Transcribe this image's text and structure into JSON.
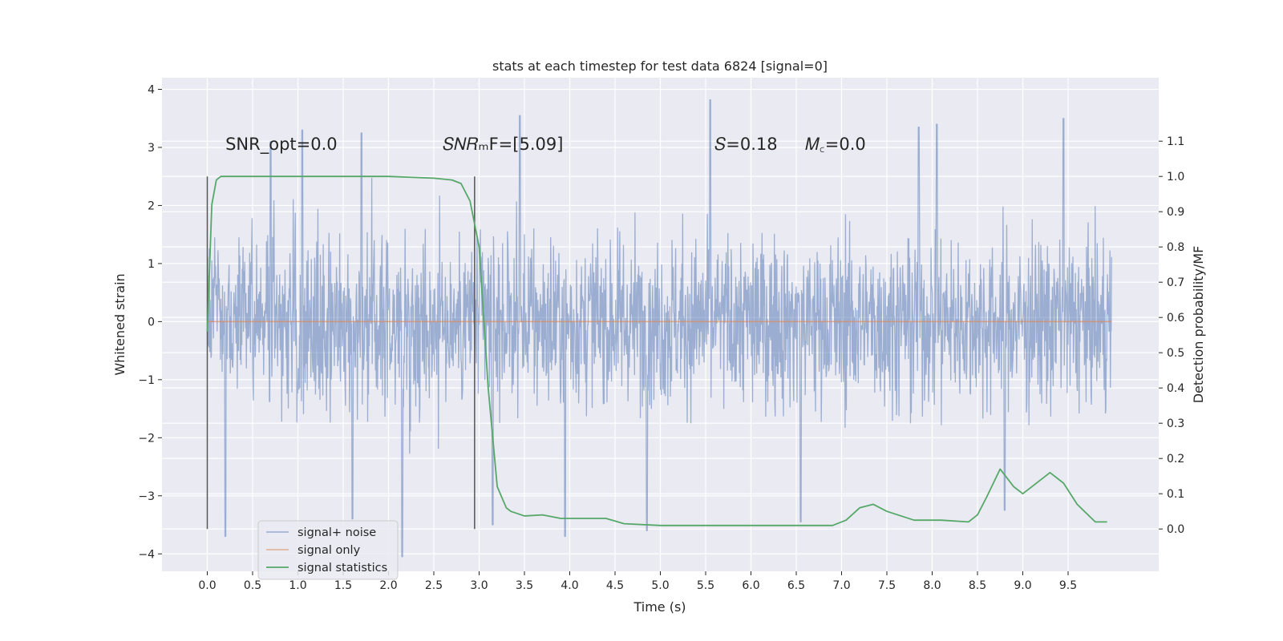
{
  "chart_data": {
    "type": "line",
    "title": "stats at each timestep for test data 6824 [signal=0]",
    "xlabel": "Time (s)",
    "ylabel": "Whitened strain",
    "y2label": "Detection probability/MF",
    "xlim": [
      -0.5,
      10.5
    ],
    "ylim": [
      -4.3,
      4.2
    ],
    "y2lim": [
      -0.12,
      1.28
    ],
    "xticks": [
      0.0,
      0.5,
      1.0,
      1.5,
      2.0,
      2.5,
      3.0,
      3.5,
      4.0,
      4.5,
      5.0,
      5.5,
      6.0,
      6.5,
      7.0,
      7.5,
      8.0,
      8.5,
      9.0,
      9.5
    ],
    "xtick_labels": [
      "0.0",
      "0.5",
      "1.0",
      "1.5",
      "2.0",
      "2.5",
      "3.0",
      "3.5",
      "4.0",
      "4.5",
      "5.0",
      "5.5",
      "6.0",
      "6.5",
      "7.0",
      "7.5",
      "8.0",
      "8.5",
      "9.0",
      "9.5"
    ],
    "yticks": [
      -4,
      -3,
      -2,
      -1,
      0,
      1,
      2,
      3,
      4
    ],
    "ytick_labels": [
      "−4",
      "−3",
      "−2",
      "−1",
      "0",
      "1",
      "2",
      "3",
      "4"
    ],
    "y2ticks": [
      0.0,
      0.1,
      0.2,
      0.3,
      0.4,
      0.5,
      0.6,
      0.7,
      0.8,
      0.9,
      1.0,
      1.1
    ],
    "y2tick_labels": [
      "0.0",
      "0.1",
      "0.2",
      "0.3",
      "0.4",
      "0.5",
      "0.6",
      "0.7",
      "0.8",
      "0.9",
      "1.0",
      "1.1"
    ],
    "grid": true,
    "legend_position": "lower-left",
    "series": [
      {
        "name": "signal+ noise",
        "color": "#4c72b0",
        "axis": "left",
        "x_range": [
          0.0,
          9.98
        ],
        "approx_range": [
          -4.05,
          3.82
        ],
        "notable_peaks": [
          [
            0.7,
            3.1
          ],
          [
            1.05,
            3.3
          ],
          [
            1.7,
            3.25
          ],
          [
            3.45,
            3.55
          ],
          [
            5.55,
            3.82
          ],
          [
            7.85,
            3.35
          ],
          [
            8.05,
            3.4
          ],
          [
            9.45,
            3.5
          ],
          [
            0.2,
            -3.7
          ],
          [
            1.6,
            -3.4
          ],
          [
            2.15,
            -4.05
          ],
          [
            3.15,
            -3.5
          ],
          [
            3.95,
            -3.7
          ],
          [
            4.85,
            -3.6
          ],
          [
            6.55,
            -3.45
          ],
          [
            8.8,
            -3.25
          ]
        ]
      },
      {
        "name": "signal only",
        "color": "#dd8452",
        "axis": "left",
        "x": [
          0.0,
          9.98
        ],
        "y": [
          0.0,
          0.0
        ]
      },
      {
        "name": "signal statistics",
        "color": "#55a868",
        "axis": "right",
        "x": [
          0.0,
          0.05,
          0.1,
          0.15,
          0.2,
          0.3,
          0.5,
          1.0,
          1.5,
          2.0,
          2.5,
          2.7,
          2.8,
          2.9,
          3.0,
          3.1,
          3.2,
          3.3,
          3.35,
          3.5,
          3.7,
          3.9,
          4.1,
          4.4,
          4.6,
          5.0,
          5.5,
          6.0,
          6.5,
          6.9,
          7.05,
          7.2,
          7.35,
          7.5,
          7.8,
          8.1,
          8.4,
          8.5,
          8.6,
          8.75,
          8.9,
          9.0,
          9.1,
          9.3,
          9.45,
          9.6,
          9.8,
          9.93
        ],
        "y": [
          0.56,
          0.92,
          0.99,
          1.0,
          1.0,
          1.0,
          1.0,
          1.0,
          1.0,
          1.0,
          0.995,
          0.99,
          0.98,
          0.93,
          0.8,
          0.4,
          0.12,
          0.06,
          0.05,
          0.037,
          0.04,
          0.03,
          0.03,
          0.03,
          0.015,
          0.01,
          0.01,
          0.01,
          0.01,
          0.01,
          0.025,
          0.06,
          0.07,
          0.05,
          0.025,
          0.025,
          0.02,
          0.04,
          0.09,
          0.17,
          0.12,
          0.1,
          0.12,
          0.16,
          0.13,
          0.07,
          0.02,
          0.02
        ]
      }
    ],
    "vlines": [
      {
        "x": 0.0,
        "color": "#555555"
      },
      {
        "x": 2.95,
        "color": "#555555"
      }
    ],
    "annotations": [
      {
        "text": "SNR_opt=0.0",
        "x": 0.2,
        "y": 3.0
      },
      {
        "text": "𝑆𝑁𝑅ₘF=[5.09]",
        "x": 2.6,
        "y": 3.0
      },
      {
        "text": "𝑆=0.18",
        "x": 5.6,
        "y": 3.0
      },
      {
        "text": "𝑀꜀=0.0",
        "x": 6.6,
        "y": 3.0
      }
    ]
  }
}
